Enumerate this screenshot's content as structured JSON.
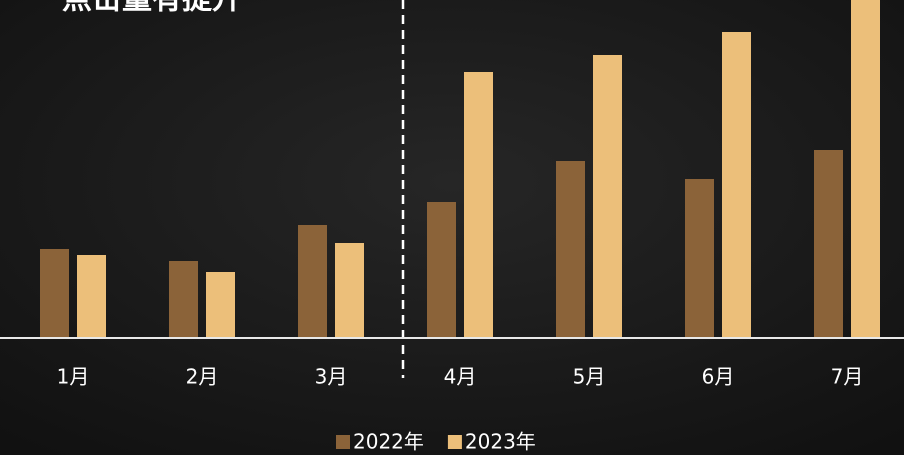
{
  "chart_data": {
    "type": "bar",
    "title": "点击量有提升",
    "categories": [
      "1月",
      "2月",
      "3月",
      "4月",
      "5月",
      "6月",
      "7月"
    ],
    "series": [
      {
        "name": "2022年",
        "color": "#8b6339",
        "values": [
          88,
          76,
          112,
          135,
          176,
          158,
          187
        ]
      },
      {
        "name": "2023年",
        "color": "#ecbf7a",
        "values": [
          82,
          65,
          94,
          265,
          282,
          305,
          345
        ]
      }
    ]
  }
}
